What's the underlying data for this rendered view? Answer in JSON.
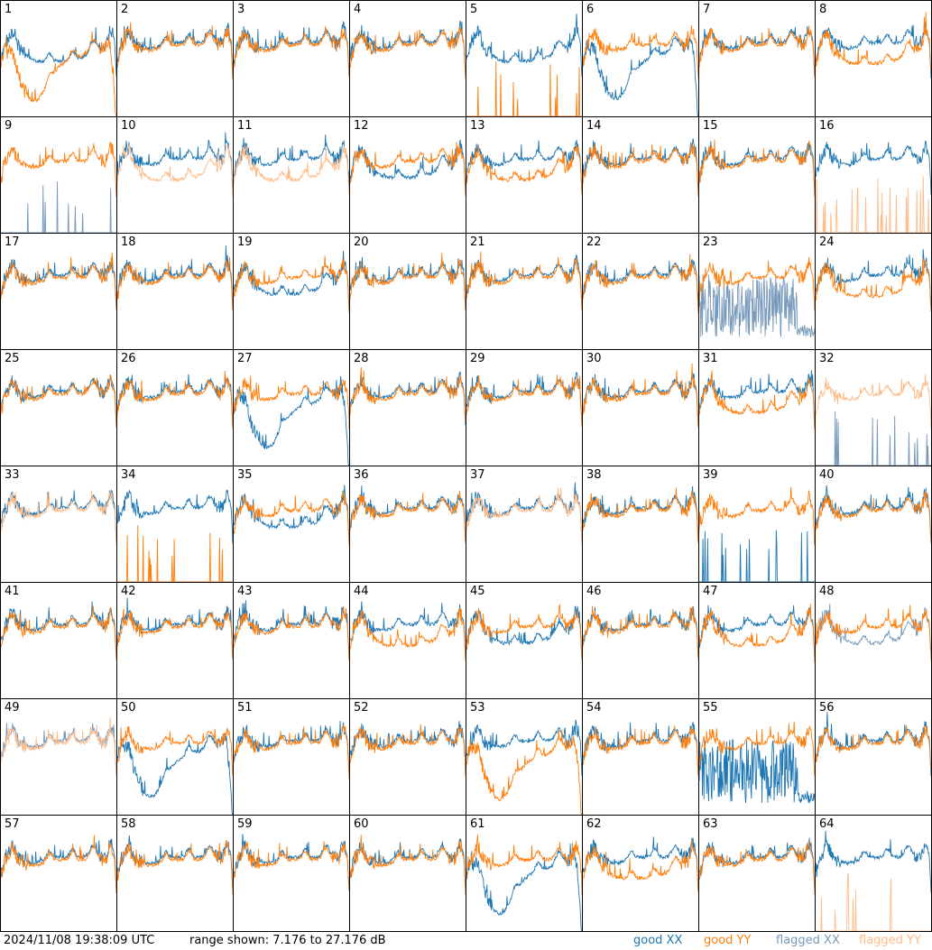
{
  "footer": {
    "timestamp": "2024/11/08 19:38:09 UTC",
    "range": "range shown: 7.176 to 27.176 dB"
  },
  "legend": [
    {
      "label": "good XX",
      "color": "#1f77b4"
    },
    {
      "label": "good YY",
      "color": "#ff7f0e"
    },
    {
      "label": "flagged XX",
      "color": "#7799bb"
    },
    {
      "label": "flagged YY",
      "color": "#ffbb88"
    }
  ],
  "chart_data": {
    "type": "line",
    "ylim": [
      7.176,
      27.176
    ],
    "yunit": "dB",
    "grid": false,
    "legend_position": "bottom-right",
    "panels": [
      {
        "label": "1",
        "xx": "good",
        "yy": "good",
        "xx_shape": "sag",
        "yy_shape": "bowl"
      },
      {
        "label": "2",
        "xx": "good",
        "yy": "good"
      },
      {
        "label": "3",
        "xx": "good",
        "yy": "good"
      },
      {
        "label": "4",
        "xx": "good",
        "yy": "good"
      },
      {
        "label": "5",
        "xx": "good",
        "yy": "good",
        "yy_shape": "spikes",
        "xx_shape": "sag"
      },
      {
        "label": "6",
        "xx": "good",
        "yy": "good",
        "xx_shape": "bowl"
      },
      {
        "label": "7",
        "xx": "good",
        "yy": "good"
      },
      {
        "label": "8",
        "xx": "good",
        "yy": "good",
        "yy_shape": "sag"
      },
      {
        "label": "9",
        "xx": "flagged",
        "yy": "good",
        "xx_shape": "spikes"
      },
      {
        "label": "10",
        "xx": "good",
        "yy": "flagged",
        "yy_shape": "sag"
      },
      {
        "label": "11",
        "xx": "good",
        "yy": "flagged",
        "yy_shape": "sag"
      },
      {
        "label": "12",
        "xx": "good",
        "yy": "good",
        "xx_shape": "sag"
      },
      {
        "label": "13",
        "xx": "good",
        "yy": "good",
        "yy_shape": "sag"
      },
      {
        "label": "14",
        "xx": "good",
        "yy": "good"
      },
      {
        "label": "15",
        "xx": "good",
        "yy": "good"
      },
      {
        "label": "16",
        "xx": "good",
        "yy": "flagged",
        "yy_shape": "spikes"
      },
      {
        "label": "17",
        "xx": "good",
        "yy": "good"
      },
      {
        "label": "18",
        "xx": "good",
        "yy": "good"
      },
      {
        "label": "19",
        "xx": "good",
        "yy": "good",
        "xx_shape": "sag"
      },
      {
        "label": "20",
        "xx": "good",
        "yy": "good"
      },
      {
        "label": "21",
        "xx": "good",
        "yy": "good"
      },
      {
        "label": "22",
        "xx": "good",
        "yy": "good"
      },
      {
        "label": "23",
        "xx": "flagged",
        "yy": "good",
        "xx_shape": "noise"
      },
      {
        "label": "24",
        "xx": "good",
        "yy": "good",
        "yy_shape": "sag"
      },
      {
        "label": "25",
        "xx": "good",
        "yy": "good"
      },
      {
        "label": "26",
        "xx": "good",
        "yy": "good"
      },
      {
        "label": "27",
        "xx": "good",
        "yy": "good",
        "xx_shape": "bowl"
      },
      {
        "label": "28",
        "xx": "good",
        "yy": "good"
      },
      {
        "label": "29",
        "xx": "good",
        "yy": "good"
      },
      {
        "label": "30",
        "xx": "good",
        "yy": "good"
      },
      {
        "label": "31",
        "xx": "good",
        "yy": "good",
        "yy_shape": "sag"
      },
      {
        "label": "32",
        "xx": "flagged",
        "yy": "flagged",
        "xx_shape": "spikes"
      },
      {
        "label": "33",
        "xx": "good",
        "yy": "flagged"
      },
      {
        "label": "34",
        "xx": "good",
        "yy": "good",
        "yy_shape": "spikes"
      },
      {
        "label": "35",
        "xx": "good",
        "yy": "good",
        "xx_shape": "sag"
      },
      {
        "label": "36",
        "xx": "good",
        "yy": "good"
      },
      {
        "label": "37",
        "xx": "good",
        "yy": "flagged"
      },
      {
        "label": "38",
        "xx": "good",
        "yy": "good"
      },
      {
        "label": "39",
        "xx": "good",
        "yy": "good",
        "xx_shape": "spikes"
      },
      {
        "label": "40",
        "xx": "good",
        "yy": "good"
      },
      {
        "label": "41",
        "xx": "good",
        "yy": "good"
      },
      {
        "label": "42",
        "xx": "good",
        "yy": "good"
      },
      {
        "label": "43",
        "xx": "good",
        "yy": "good"
      },
      {
        "label": "44",
        "xx": "good",
        "yy": "good",
        "yy_shape": "sag"
      },
      {
        "label": "45",
        "xx": "good",
        "yy": "good",
        "xx_shape": "sag"
      },
      {
        "label": "46",
        "xx": "good",
        "yy": "good"
      },
      {
        "label": "47",
        "xx": "good",
        "yy": "good",
        "yy_shape": "sag"
      },
      {
        "label": "48",
        "xx": "flagged",
        "yy": "good",
        "xx_shape": "sag"
      },
      {
        "label": "49",
        "xx": "flagged",
        "yy": "flagged"
      },
      {
        "label": "50",
        "xx": "good",
        "yy": "good",
        "xx_shape": "bowl"
      },
      {
        "label": "51",
        "xx": "good",
        "yy": "good"
      },
      {
        "label": "52",
        "xx": "good",
        "yy": "good"
      },
      {
        "label": "53",
        "xx": "good",
        "yy": "good",
        "yy_shape": "bowl"
      },
      {
        "label": "54",
        "xx": "good",
        "yy": "good"
      },
      {
        "label": "55",
        "xx": "good",
        "yy": "good",
        "xx_shape": "noise"
      },
      {
        "label": "56",
        "xx": "good",
        "yy": "good"
      },
      {
        "label": "57",
        "xx": "good",
        "yy": "good"
      },
      {
        "label": "58",
        "xx": "good",
        "yy": "good"
      },
      {
        "label": "59",
        "xx": "good",
        "yy": "good"
      },
      {
        "label": "60",
        "xx": "good",
        "yy": "good"
      },
      {
        "label": "61",
        "xx": "good",
        "yy": "good",
        "xx_shape": "bowl"
      },
      {
        "label": "62",
        "xx": "good",
        "yy": "good",
        "yy_shape": "sag"
      },
      {
        "label": "63",
        "xx": "good",
        "yy": "good"
      },
      {
        "label": "64",
        "xx": "good",
        "yy": "flagged",
        "yy_shape": "spikes"
      }
    ]
  }
}
